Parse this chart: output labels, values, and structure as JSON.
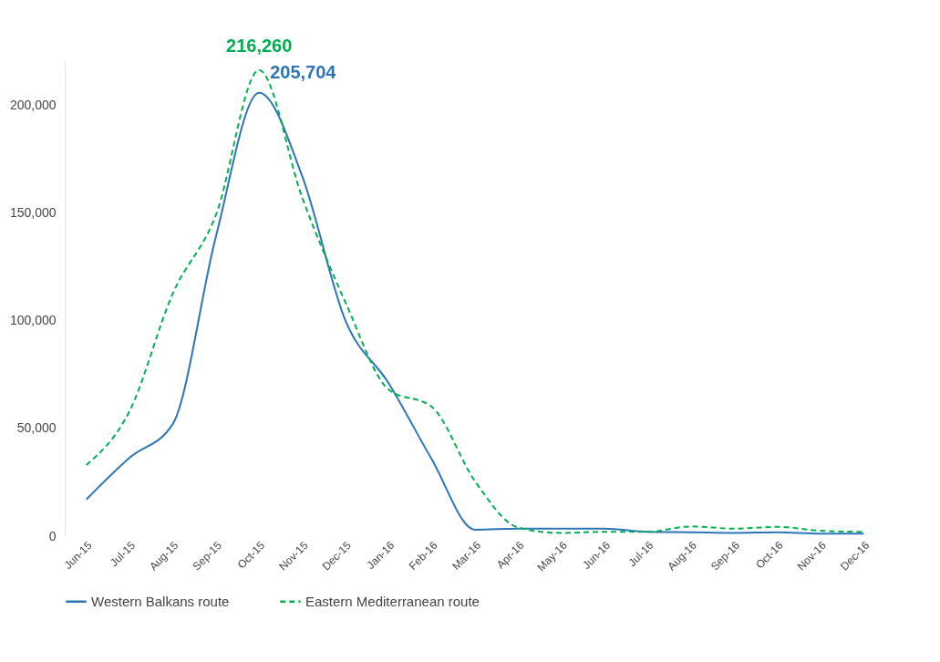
{
  "chart_data": {
    "type": "line",
    "categories": [
      "Jun-15",
      "Jul-15",
      "Aug-15",
      "Sep-15",
      "Oct-15",
      "Nov-15",
      "Dec-15",
      "Jan-16",
      "Feb-16",
      "Mar-16",
      "Apr-16",
      "May-16",
      "Jun-16",
      "Jul-16",
      "Aug-16",
      "Sep-16",
      "Oct-16",
      "Nov-16",
      "Dec-16"
    ],
    "series": [
      {
        "name": "Western Balkans route",
        "color": "#2e75b6",
        "line_style": "solid",
        "values": [
          17000,
          36400,
          52000,
          139000,
          205704,
          167000,
          100000,
          71000,
          35600,
          3000,
          3500,
          3500,
          3500,
          2000,
          1800,
          1500,
          1800,
          1200,
          1200
        ],
        "value_labels": [
          null,
          null,
          null,
          null,
          "205,704",
          null,
          null,
          null,
          null,
          null,
          null,
          null,
          null,
          null,
          null,
          null,
          null,
          null,
          null
        ]
      },
      {
        "name": "Eastern Mediterranean route",
        "color": "#00b050",
        "line_style": "dashed",
        "values": [
          33000,
          58000,
          112500,
          149000,
          216260,
          157000,
          108500,
          68000,
          60000,
          25500,
          4000,
          1500,
          2000,
          2000,
          4500,
          3500,
          4300,
          2500,
          2000
        ],
        "value_labels": [
          null,
          null,
          null,
          null,
          "216,260",
          null,
          null,
          null,
          null,
          null,
          null,
          null,
          null,
          null,
          null,
          null,
          null,
          null,
          null
        ]
      }
    ],
    "ylim": [
      0,
      220000
    ],
    "yticks": [
      0,
      {
        "value": 50000,
        "label": "50,000"
      },
      {
        "value": 100000,
        "label": "100,000"
      },
      {
        "value": 150000,
        "label": "150,000"
      },
      {
        "value": 200000,
        "label": "200,000"
      }
    ],
    "grid": false,
    "legend": "bottom"
  }
}
